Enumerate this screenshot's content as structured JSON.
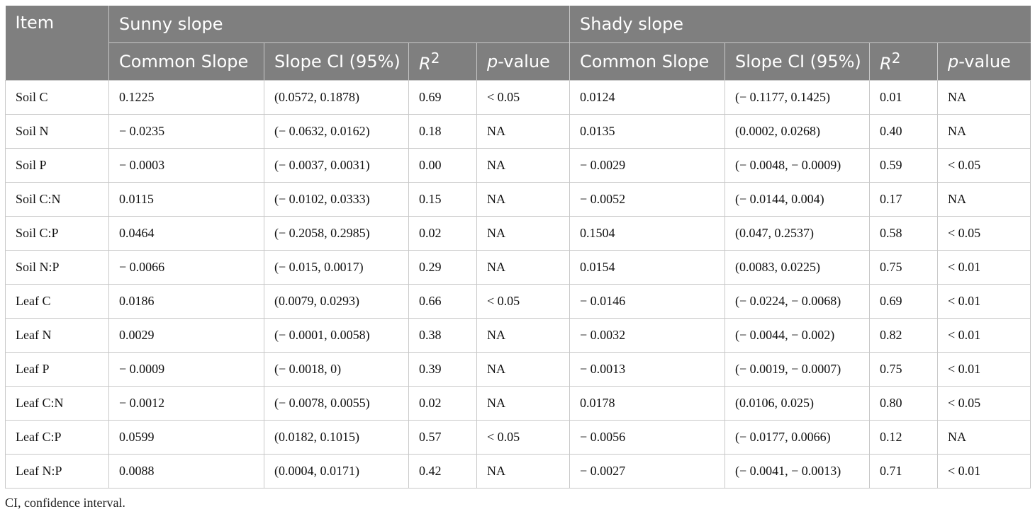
{
  "table": {
    "headers": {
      "item": "Item",
      "group_sunny": "Sunny slope",
      "group_shady": "Shady slope",
      "common_slope": "Common Slope",
      "slope_ci": "Slope CI (95%)",
      "r2_base": "R",
      "r2_sup": "2",
      "p_italic": "p",
      "p_rest": "-value"
    },
    "rows": [
      [
        "Soil C",
        "0.1225",
        "(0.0572, 0.1878)",
        "0.69",
        "< 0.05",
        "0.0124",
        "(− 0.1177, 0.1425)",
        "0.01",
        "NA"
      ],
      [
        "Soil N",
        "− 0.0235",
        "(− 0.0632, 0.0162)",
        "0.18",
        "NA",
        "0.0135",
        "(0.0002, 0.0268)",
        "0.40",
        "NA"
      ],
      [
        "Soil P",
        "− 0.0003",
        "(− 0.0037, 0.0031)",
        "0.00",
        "NA",
        "− 0.0029",
        "(− 0.0048, − 0.0009)",
        "0.59",
        "< 0.05"
      ],
      [
        "Soil C:N",
        "0.0115",
        "(− 0.0102, 0.0333)",
        "0.15",
        "NA",
        "− 0.0052",
        "(− 0.0144, 0.004)",
        "0.17",
        "NA"
      ],
      [
        "Soil C:P",
        "0.0464",
        "(− 0.2058, 0.2985)",
        "0.02",
        "NA",
        "0.1504",
        "(0.047, 0.2537)",
        "0.58",
        "< 0.05"
      ],
      [
        "Soil N:P",
        "− 0.0066",
        "(− 0.015, 0.0017)",
        "0.29",
        "NA",
        "0.0154",
        "(0.0083, 0.0225)",
        "0.75",
        "< 0.01"
      ],
      [
        "Leaf C",
        "0.0186",
        "(0.0079, 0.0293)",
        "0.66",
        "< 0.05",
        "− 0.0146",
        "(− 0.0224, − 0.0068)",
        "0.69",
        "< 0.01"
      ],
      [
        "Leaf N",
        "0.0029",
        "(− 0.0001, 0.0058)",
        "0.38",
        "NA",
        "− 0.0032",
        "(− 0.0044, − 0.002)",
        "0.82",
        "< 0.01"
      ],
      [
        "Leaf P",
        "− 0.0009",
        "(− 0.0018, 0)",
        "0.39",
        "NA",
        "− 0.0013",
        "(− 0.0019, − 0.0007)",
        "0.75",
        "< 0.01"
      ],
      [
        "Leaf C:N",
        "− 0.0012",
        "(− 0.0078, 0.0055)",
        "0.02",
        "NA",
        "0.0178",
        "(0.0106, 0.025)",
        "0.80",
        "< 0.05"
      ],
      [
        "Leaf C:P",
        "0.0599",
        "(0.0182, 0.1015)",
        "0.57",
        "< 0.05",
        "− 0.0056",
        "(− 0.0177, 0.0066)",
        "0.12",
        "NA"
      ],
      [
        "Leaf N:P",
        "0.0088",
        "(0.0004, 0.0171)",
        "0.42",
        "NA",
        "− 0.0027",
        "(− 0.0041, − 0.0013)",
        "0.71",
        "< 0.01"
      ]
    ]
  },
  "footnote": "CI, confidence interval."
}
